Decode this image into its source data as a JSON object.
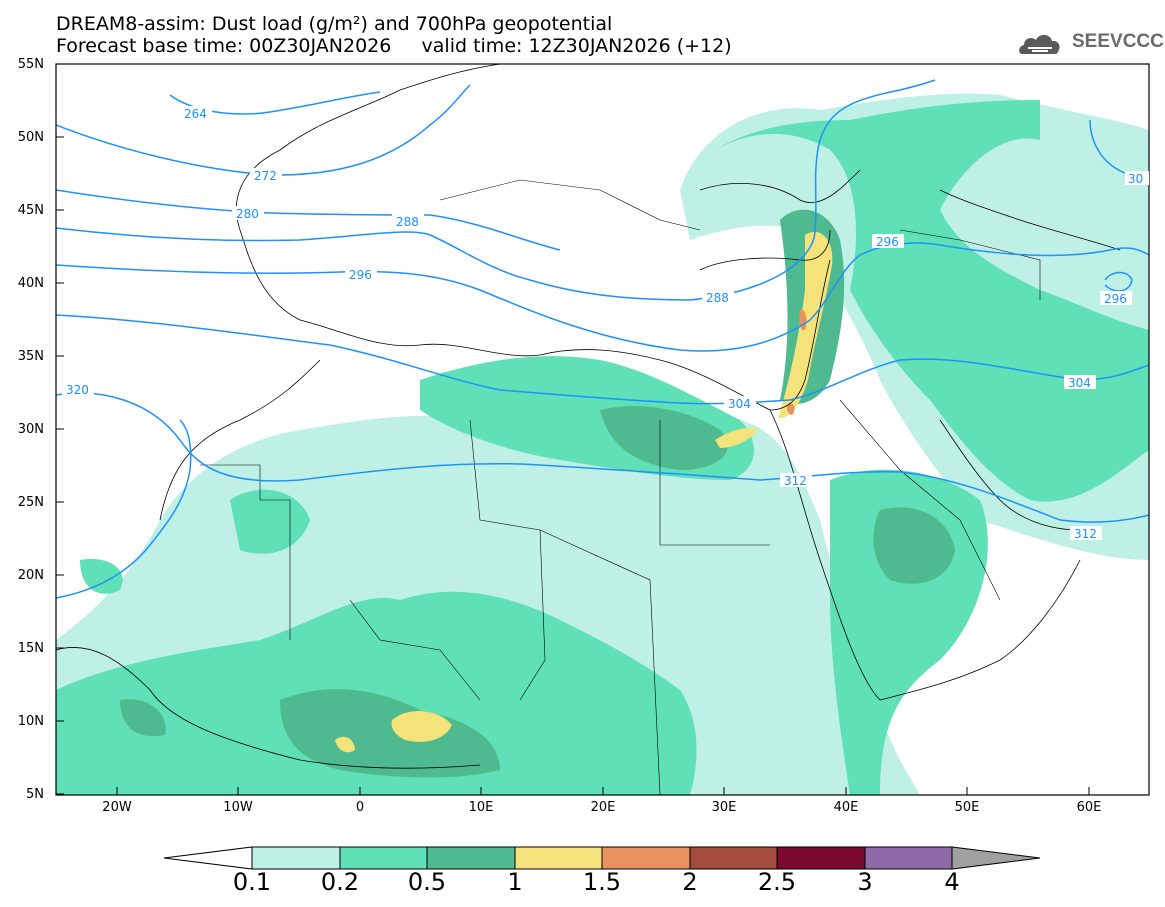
{
  "title": {
    "line1": "DREAM8-assim: Dust load (g/m²) and 700hPa geopotential",
    "line2": "Forecast base time: 00Z30JAN2026     valid time: 12Z30JAN2026 (+12)"
  },
  "logo": {
    "text": "SEEVCCC",
    "icon": "cloud-icon"
  },
  "axes": {
    "lat_labels": [
      "55N",
      "50N",
      "45N",
      "40N",
      "35N",
      "30N",
      "25N",
      "20N",
      "15N",
      "10N",
      "5N"
    ],
    "lon_labels": [
      "20W",
      "10W",
      "0",
      "10E",
      "20E",
      "30E",
      "40E",
      "50E",
      "60E"
    ]
  },
  "contour_labels": [
    "264",
    "272",
    "280",
    "288",
    "296",
    "304",
    "312",
    "320",
    "288",
    "296",
    "304",
    "312",
    "296",
    "30"
  ],
  "colorbar": {
    "labels": [
      "0.1",
      "0.2",
      "0.5",
      "1",
      "1.5",
      "2",
      "2.5",
      "3",
      "4"
    ],
    "colors": [
      "#bff0e6",
      "#5fe0b6",
      "#4fb98f",
      "#f4e27a",
      "#e8925e",
      "#a44d3e",
      "#7a0a2e",
      "#8e6aa8"
    ],
    "under_color": "#ffffff",
    "over_color": "#a0a0a0"
  },
  "colors": {
    "contour": "#1e90ff",
    "border": "#000000",
    "frame": "#000000"
  }
}
